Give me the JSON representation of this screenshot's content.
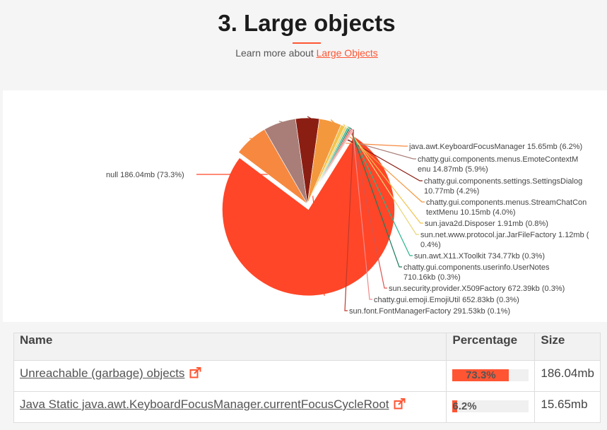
{
  "section": {
    "title": "3. Large objects",
    "learn_more_prefix": "Learn more about ",
    "learn_more_link": "Large Objects"
  },
  "colors": {
    "accent": "#ff5533"
  },
  "chart_data": {
    "type": "pie",
    "unit": "mb",
    "slices": [
      {
        "label": "null 186.04mb (73.3%)",
        "name": "null",
        "value": 186.04,
        "percent": 73.3,
        "color": "#ff4628"
      },
      {
        "label": "java.awt.KeyboardFocusManager 15.65mb (6.2%)",
        "name": "java.awt.KeyboardFocusManager",
        "value": 15.65,
        "percent": 6.2,
        "color": "#f6893f"
      },
      {
        "label": "chatty.gui.components.menus.EmoteContextMenu 14.87mb (5.9%)",
        "name": "chatty.gui.components.menus.EmoteContextMenu",
        "value": 14.87,
        "percent": 5.9,
        "color": "#a97e78"
      },
      {
        "label": "chatty.gui.components.settings.SettingsDialog 10.77mb (4.2%)",
        "name": "chatty.gui.components.settings.SettingsDialog",
        "value": 10.77,
        "percent": 4.2,
        "color": "#8b1e13"
      },
      {
        "label": "chatty.gui.components.menus.StreamChatContextMenu 10.15mb (4.0%)",
        "name": "chatty.gui.components.menus.StreamChatContextMenu",
        "value": 10.15,
        "percent": 4.0,
        "color": "#f4983e"
      },
      {
        "label": "sun.java2d.Disposer 1.91mb (0.8%)",
        "name": "sun.java2d.Disposer",
        "value": 1.91,
        "percent": 0.8,
        "color": "#f2c34e"
      },
      {
        "label": "sun.net.www.protocol.jar.JarFileFactory 1.12mb (0.4%)",
        "name": "sun.net.www.protocol.jar.JarFileFactory",
        "value": 1.12,
        "percent": 0.4,
        "color": "#e8d77a"
      },
      {
        "label": "sun.awt.X11.XToolkit 734.77kb (0.3%)",
        "name": "sun.awt.X11.XToolkit",
        "value": 0.73477,
        "percent": 0.3,
        "color": "#2bb58d"
      },
      {
        "label": "chatty.gui.components.userinfo.UserNotes 710.16kb (0.3%)",
        "name": "chatty.gui.components.userinfo.UserNotes",
        "value": 0.71016,
        "percent": 0.3,
        "color": "#1c7b5e"
      },
      {
        "label": "sun.security.provider.X509Factory 672.39kb (0.3%)",
        "name": "sun.security.provider.X509Factory",
        "value": 0.67239,
        "percent": 0.3,
        "color": "#d9534f"
      },
      {
        "label": "chatty.gui.emoji.EmojiUtil 652.83kb (0.3%)",
        "name": "chatty.gui.emoji.EmojiUtil",
        "value": 0.65283,
        "percent": 0.3,
        "color": "#f08a8a"
      },
      {
        "label": "sun.font.FontManagerFactory 291.53kb (0.1%)",
        "name": "sun.font.FontManagerFactory",
        "value": 0.29153,
        "percent": 0.1,
        "color": "#c0392b"
      }
    ]
  },
  "table": {
    "headers": {
      "name": "Name",
      "percentage": "Percentage",
      "size": "Size"
    },
    "rows": [
      {
        "name": "Unreachable (garbage) objects",
        "percentage": "73.3%",
        "percent_value": 73.3,
        "size": "186.04mb"
      },
      {
        "name": "Java Static java.awt.KeyboardFocusManager.currentFocusCycleRoot",
        "percentage": "6.2%",
        "percent_value": 6.2,
        "size": "15.65mb"
      }
    ]
  }
}
